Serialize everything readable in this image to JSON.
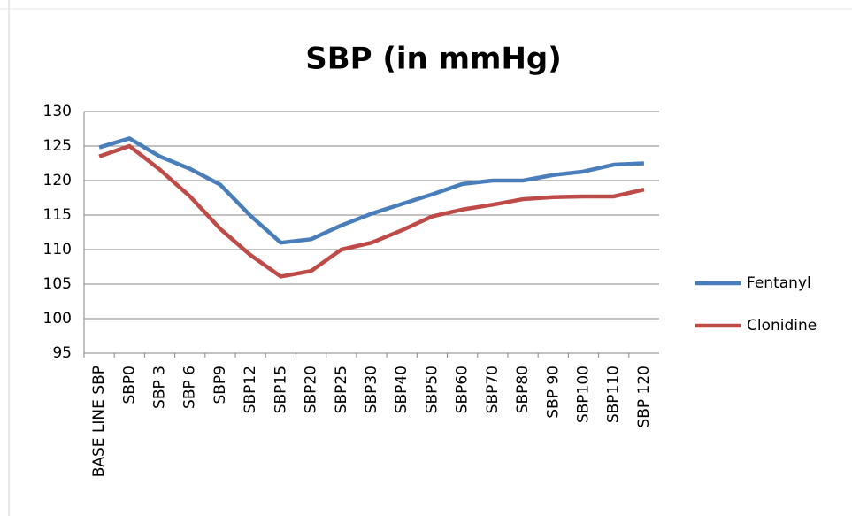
{
  "chart_data": {
    "type": "line",
    "title": "SBP (in mmHg)",
    "categories": [
      "BASE LINE SBP",
      "SBP0",
      "SBP 3",
      "SBP 6",
      "SBP9",
      "SBP12",
      "SBP15",
      "SBP20",
      "SBP25",
      "SBP30",
      "SBP40",
      "SBP50",
      "SBP60",
      "SBP70",
      "SBP80",
      "SBP 90",
      "SBP100",
      "SBP110",
      "SBP 120"
    ],
    "series": [
      {
        "name": "Fentanyl",
        "color": "#4a7ebb",
        "values": [
          124.8,
          126.1,
          123.5,
          121.7,
          119.4,
          114.9,
          111.0,
          111.5,
          113.5,
          115.2,
          116.6,
          118.0,
          119.5,
          120.0,
          120.0,
          120.8,
          121.3,
          122.3,
          122.5
        ]
      },
      {
        "name": "Clonidine",
        "color": "#be4b48",
        "values": [
          123.5,
          125.0,
          121.6,
          117.7,
          113.0,
          109.2,
          106.1,
          106.9,
          110.0,
          111.0,
          112.8,
          114.8,
          115.8,
          116.5,
          117.3,
          117.6,
          117.7,
          117.7,
          118.7
        ]
      }
    ],
    "ylim": [
      95,
      130
    ],
    "yticks": [
      95,
      100,
      105,
      110,
      115,
      120,
      125,
      130
    ],
    "grid": true,
    "legend": "right"
  }
}
